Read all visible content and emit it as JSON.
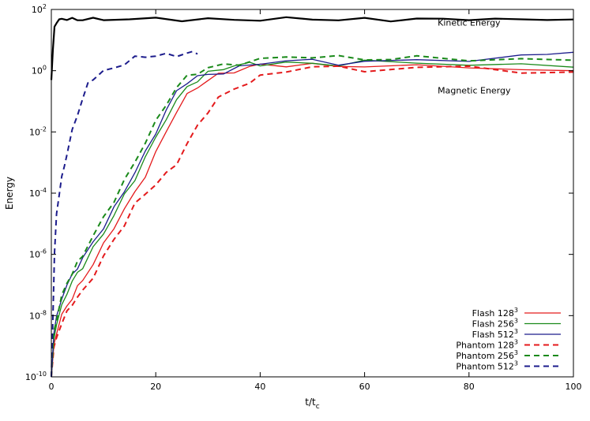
{
  "chart_data": {
    "type": "line",
    "xlabel": "t/t_c",
    "ylabel": "Energy",
    "xlim": [
      0,
      100
    ],
    "ylim": [
      1e-10,
      100
    ],
    "yscale": "log",
    "grid": false,
    "legend_position": "bottom-right",
    "x_ticks": [
      {
        "value": 0,
        "label": "0"
      },
      {
        "value": 20,
        "label": "20"
      },
      {
        "value": 40,
        "label": "40"
      },
      {
        "value": 60,
        "label": "60"
      },
      {
        "value": 80,
        "label": "80"
      },
      {
        "value": 100,
        "label": "100"
      }
    ],
    "y_ticks": [
      {
        "value": 1e-10,
        "mantissa": "10",
        "exponent": "-10"
      },
      {
        "value": 1e-08,
        "mantissa": "10",
        "exponent": "-8"
      },
      {
        "value": 1e-06,
        "mantissa": "10",
        "exponent": "-6"
      },
      {
        "value": 0.0001,
        "mantissa": "10",
        "exponent": "-4"
      },
      {
        "value": 0.01,
        "mantissa": "10",
        "exponent": "-2"
      },
      {
        "value": 1,
        "mantissa": "10",
        "exponent": "0"
      },
      {
        "value": 100,
        "mantissa": "10",
        "exponent": "2"
      }
    ],
    "annotations": [
      {
        "text": "Kinetic Energy",
        "x": 74,
        "y": 30
      },
      {
        "text": "Magnetic Energy",
        "x": 74,
        "y": 0.18
      }
    ],
    "series": [
      {
        "name": "Flash 128",
        "name_exponent": "3",
        "color": "#e41a1c",
        "dash": "solid",
        "group": "magnetic",
        "x": [
          0,
          0.5,
          1,
          2,
          3,
          4,
          5,
          6,
          8,
          10,
          12,
          14,
          16,
          18,
          20,
          22,
          24,
          26,
          28,
          30,
          32,
          35,
          38,
          40,
          45,
          50,
          55,
          60,
          70,
          80,
          90,
          100
        ],
        "y": [
          1e-10,
          1e-09,
          3e-09,
          1e-08,
          2e-08,
          4e-08,
          8e-08,
          1.5e-07,
          5e-07,
          2e-06,
          8e-06,
          3e-05,
          0.0001,
          0.0004,
          0.002,
          0.01,
          0.05,
          0.15,
          0.3,
          0.5,
          0.7,
          1.0,
          1.3,
          1.5,
          1.6,
          1.5,
          1.4,
          1.5,
          1.3,
          1.4,
          1.1,
          1.0
        ]
      },
      {
        "name": "Flash 256",
        "name_exponent": "3",
        "color": "#1a8a1a",
        "dash": "solid",
        "group": "magnetic",
        "x": [
          0,
          0.5,
          1,
          2,
          3,
          4,
          5,
          6,
          8,
          10,
          12,
          14,
          16,
          18,
          20,
          22,
          24,
          26,
          28,
          30,
          33,
          35,
          38,
          40,
          45,
          50,
          55,
          60,
          70,
          80,
          90,
          100
        ],
        "y": [
          1e-10,
          2e-09,
          5e-09,
          2e-08,
          6e-08,
          1.2e-07,
          2.5e-07,
          4e-07,
          1.5e-06,
          5e-06,
          2e-05,
          8e-05,
          0.0003,
          0.0015,
          0.006,
          0.03,
          0.1,
          0.3,
          0.5,
          0.8,
          1.2,
          1.5,
          1.6,
          1.7,
          1.8,
          1.6,
          1.7,
          1.9,
          1.8,
          1.7,
          1.4,
          1.3
        ]
      },
      {
        "name": "Flash 512",
        "name_exponent": "3",
        "color": "#1c1c8c",
        "dash": "solid",
        "group": "magnetic",
        "x": [
          0,
          0.5,
          1,
          2,
          3,
          4,
          5,
          6,
          8,
          10,
          12,
          14,
          16,
          18,
          20,
          22,
          24,
          26,
          28,
          30,
          33,
          36,
          40,
          45,
          50,
          55,
          60,
          70,
          80,
          90,
          95,
          100
        ],
        "y": [
          1e-10,
          3e-09,
          8e-09,
          4e-08,
          1e-07,
          2e-07,
          4e-07,
          7e-07,
          2.5e-06,
          8e-06,
          3e-05,
          0.00012,
          0.0005,
          0.002,
          0.01,
          0.05,
          0.2,
          0.45,
          0.6,
          0.75,
          0.9,
          1.2,
          1.8,
          2.2,
          2.0,
          1.8,
          1.9,
          2.1,
          2.4,
          2.8,
          3.5,
          4.0
        ]
      },
      {
        "name": "Phantom 128",
        "name_exponent": "3",
        "color": "#e41a1c",
        "dash": "dashed",
        "group": "magnetic",
        "x": [
          0,
          0.5,
          1,
          2,
          3,
          4,
          5,
          6,
          8,
          10,
          12,
          14,
          16,
          18,
          20,
          22,
          24,
          26,
          28,
          30,
          32,
          35,
          38,
          40,
          45,
          50,
          55,
          60,
          70,
          80,
          90,
          100
        ],
        "y": [
          1e-10,
          8e-10,
          2e-09,
          6e-09,
          1.2e-08,
          2.5e-08,
          4e-08,
          6e-08,
          2e-07,
          8e-07,
          3e-06,
          1e-05,
          4e-05,
          0.0001,
          0.0002,
          0.0004,
          0.001,
          0.004,
          0.015,
          0.05,
          0.12,
          0.25,
          0.45,
          0.6,
          1.0,
          1.4,
          1.2,
          1.1,
          1.2,
          1.3,
          1.0,
          0.9
        ]
      },
      {
        "name": "Phantom 256",
        "name_exponent": "3",
        "color": "#1a8a1a",
        "dash": "dashed",
        "group": "magnetic",
        "x": [
          0,
          0.5,
          1,
          2,
          3,
          4,
          5,
          6,
          8,
          10,
          12,
          14,
          16,
          18,
          20,
          22,
          24,
          26,
          28,
          30,
          33,
          36,
          40,
          45,
          50,
          55,
          60,
          65,
          70,
          80,
          90,
          100
        ],
        "y": [
          1e-10,
          3e-09,
          8e-09,
          4e-08,
          1.2e-07,
          2.5e-07,
          5e-07,
          1e-06,
          4e-06,
          1.5e-05,
          6e-05,
          0.00025,
          0.001,
          0.005,
          0.02,
          0.08,
          0.3,
          0.6,
          0.9,
          1.2,
          1.5,
          1.8,
          2.2,
          2.8,
          3.0,
          2.6,
          2.5,
          2.4,
          2.6,
          2.5,
          2.3,
          2.2
        ]
      },
      {
        "name": "Phantom 512",
        "name_exponent": "3",
        "color": "#1c1c8c",
        "dash": "dashed",
        "group": "magnetic",
        "x": [
          0,
          0.3,
          0.6,
          1,
          1.5,
          2,
          2.5,
          3,
          4,
          5,
          6,
          7,
          8,
          10,
          12,
          14,
          16,
          18,
          20,
          22,
          24,
          26,
          27,
          28
        ],
        "y": [
          1e-10,
          1e-08,
          1e-06,
          2e-05,
          0.0001,
          0.0003,
          0.0008,
          0.002,
          0.01,
          0.04,
          0.12,
          0.35,
          0.6,
          0.9,
          1.2,
          1.8,
          2.5,
          3.0,
          3.2,
          3.1,
          3.4,
          3.6,
          3.8,
          3.5
        ]
      },
      {
        "name": "",
        "color": "#000000",
        "dash": "solid",
        "group": "kinetic",
        "x": [
          0,
          0.3,
          0.6,
          1,
          1.5,
          2,
          3,
          4,
          5,
          6,
          8,
          10,
          15,
          20,
          25,
          30,
          35,
          40,
          45,
          50,
          55,
          60,
          65,
          70,
          75,
          80,
          85,
          90,
          95,
          100
        ],
        "y": [
          0.5,
          5,
          25,
          40,
          45,
          48,
          50,
          48,
          46,
          47,
          48,
          49,
          47,
          50,
          46,
          48,
          45,
          47,
          50,
          49,
          46,
          48,
          45,
          49,
          47,
          50,
          46,
          48,
          49,
          47
        ]
      }
    ]
  }
}
